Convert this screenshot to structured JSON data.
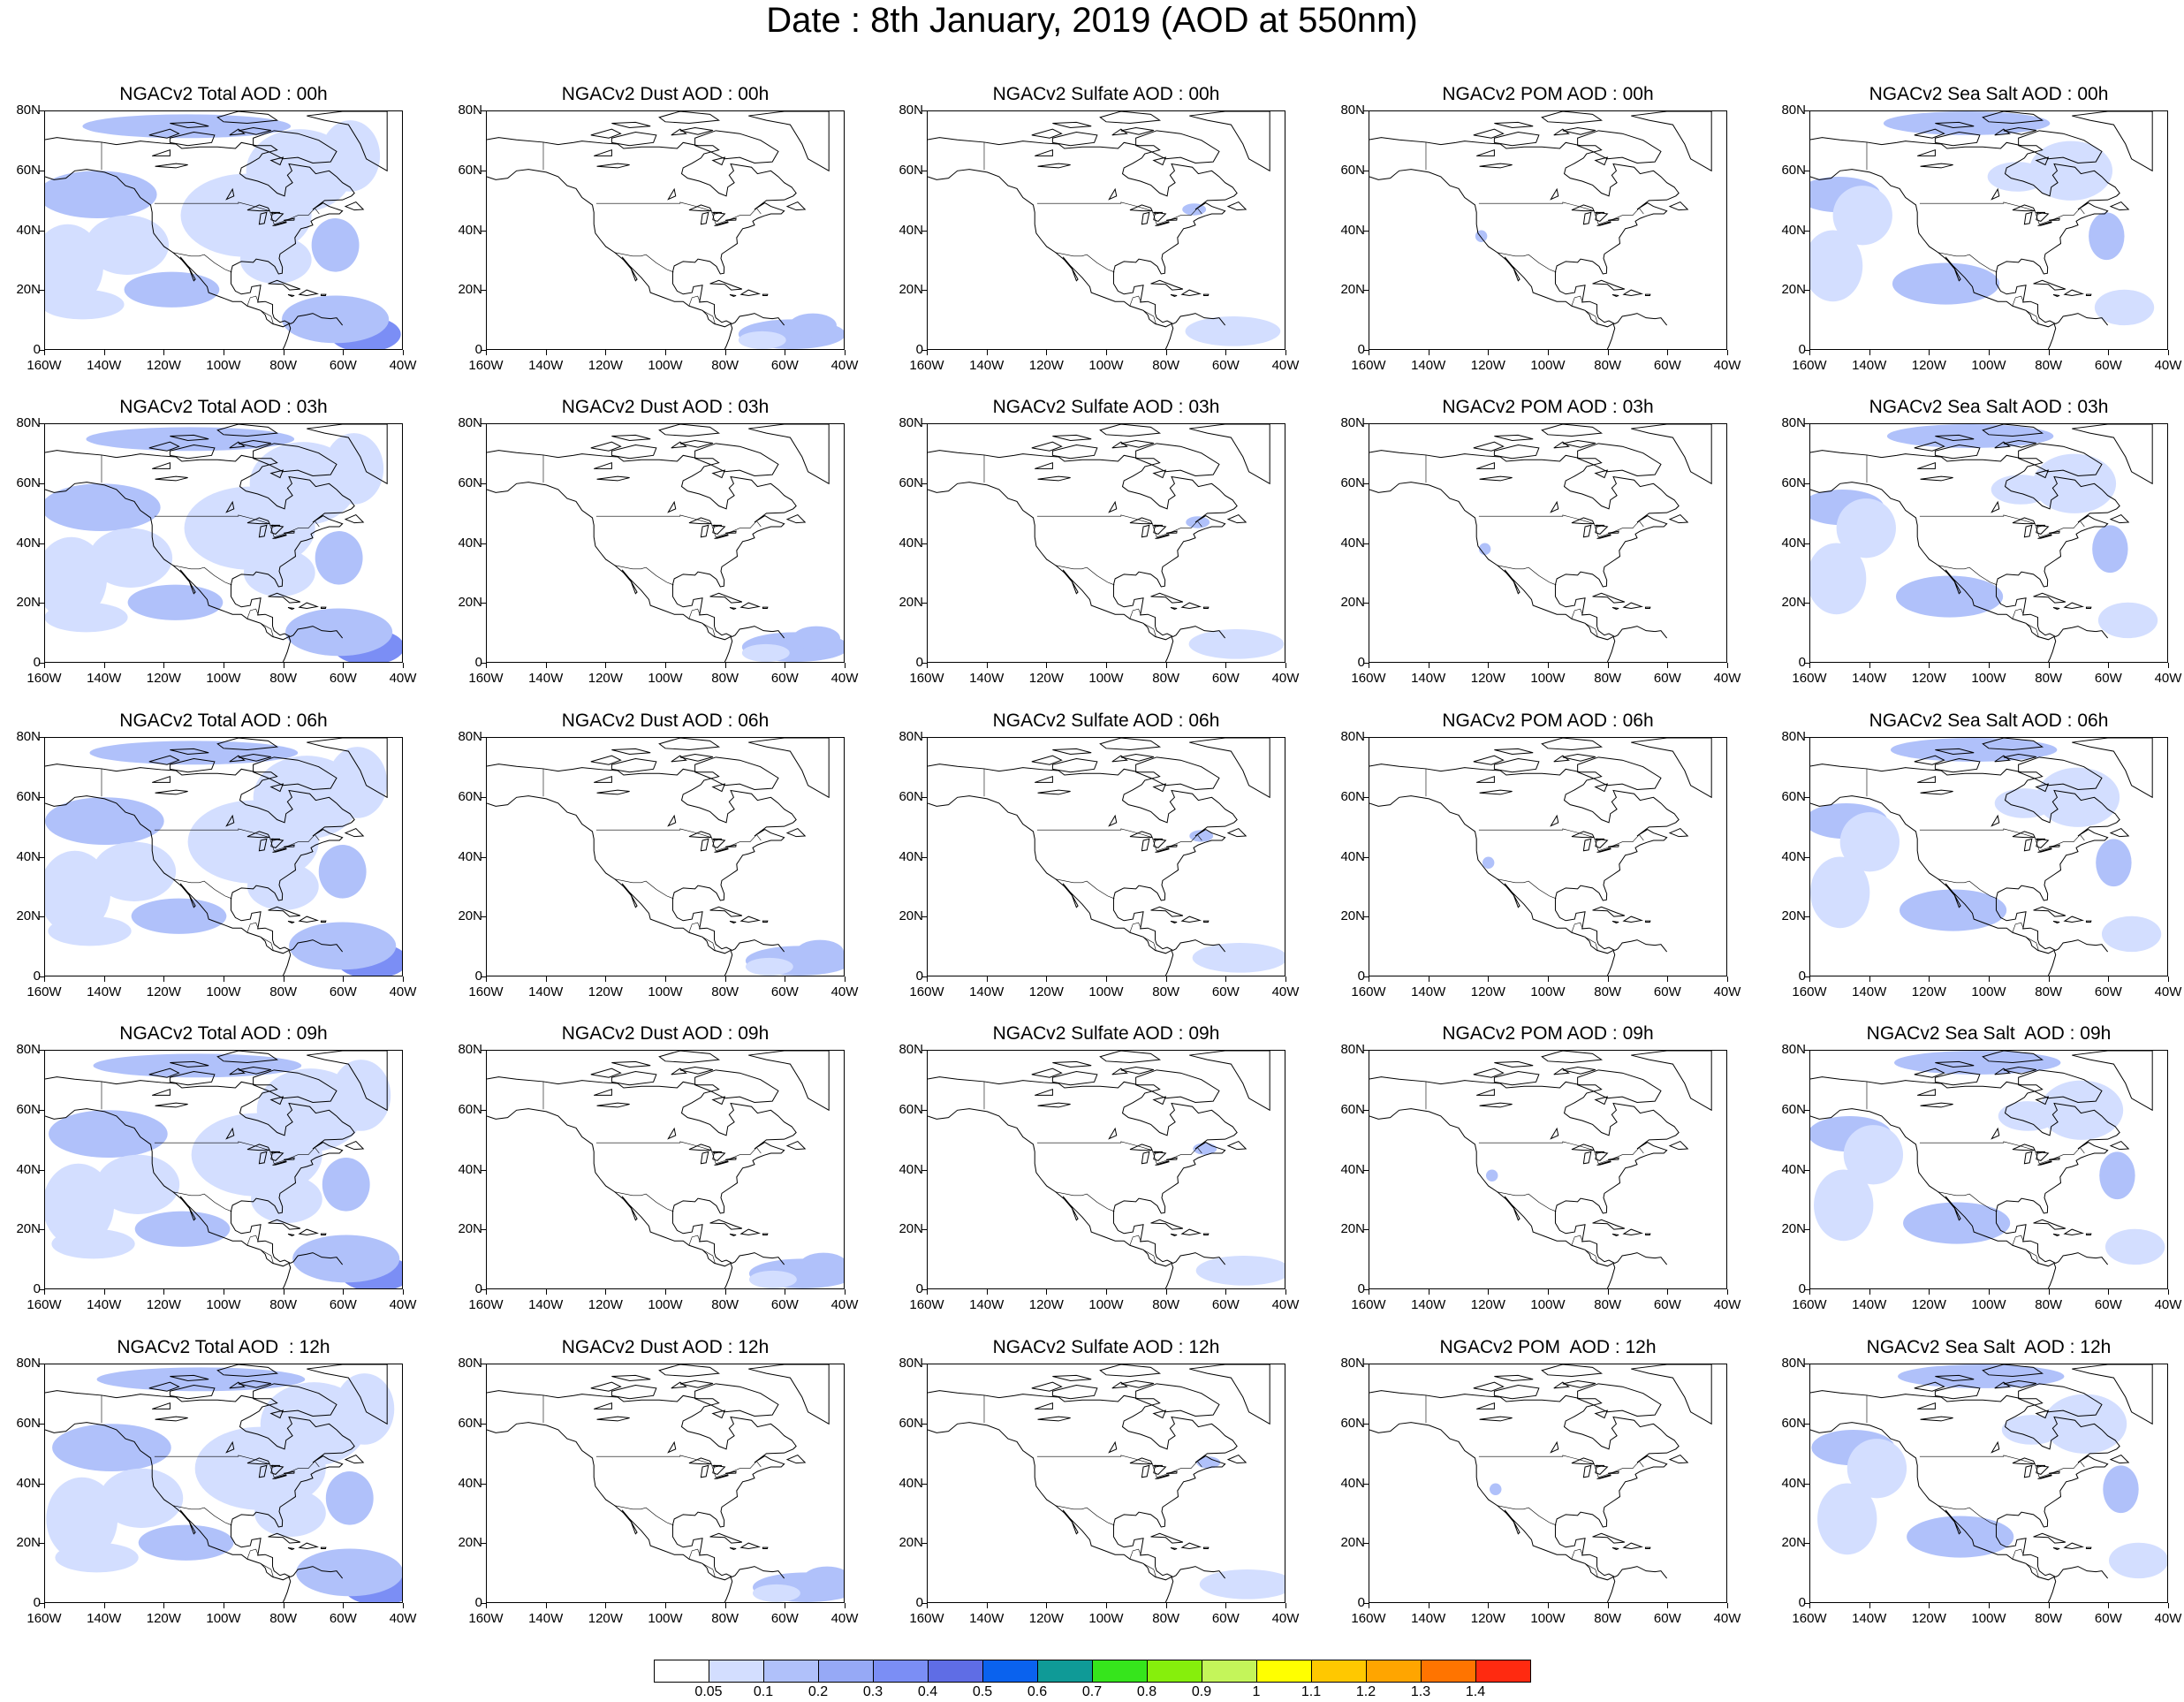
{
  "figure_title": "Date : 8th January, 2019 (AOD at 550nm)",
  "y_tick_labels": [
    "80N",
    "60N",
    "40N",
    "20N",
    "0"
  ],
  "x_tick_labels": [
    "160W",
    "140W",
    "120W",
    "100W",
    "80W",
    "60W",
    "40W"
  ],
  "map_extent": {
    "lon_min": -160,
    "lon_max": -40,
    "lat_min": 0,
    "lat_max": 80
  },
  "variables": [
    "Total",
    "Dust",
    "Sulfate",
    "POM",
    "Sea Salt"
  ],
  "forecast_hours": [
    "00h",
    "03h",
    "06h",
    "09h",
    "12h"
  ],
  "panels": [
    [
      "NGACv2 Total AOD : 00h",
      "NGACv2 Dust AOD : 00h",
      "NGACv2 Sulfate AOD : 00h",
      "NGACv2 POM AOD : 00h",
      "NGACv2 Sea Salt AOD : 00h"
    ],
    [
      "NGACv2 Total AOD : 03h",
      "NGACv2 Dust AOD : 03h",
      "NGACv2 Sulfate AOD : 03h",
      "NGACv2 POM AOD : 03h",
      "NGACv2 Sea Salt AOD : 03h"
    ],
    [
      "NGACv2 Total AOD : 06h",
      "NGACv2 Dust AOD : 06h",
      "NGACv2 Sulfate AOD : 06h",
      "NGACv2 POM AOD : 06h",
      "NGACv2 Sea Salt AOD : 06h"
    ],
    [
      "NGACv2 Total AOD : 09h",
      "NGACv2 Dust AOD : 09h",
      "NGACv2 Sulfate AOD : 09h",
      "NGACv2 POM AOD : 09h",
      "NGACv2 Sea Salt  AOD : 09h"
    ],
    [
      "NGACv2 Total AOD  : 12h",
      "NGACv2 Dust AOD : 12h",
      "NGACv2 Sulfate AOD : 12h",
      "NGACv2 POM  AOD : 12h",
      "NGACv2 Sea Salt  AOD : 12h"
    ]
  ],
  "colorbar": {
    "labels": [
      "0.05",
      "0.1",
      "0.2",
      "0.3",
      "0.4",
      "0.5",
      "0.6",
      "0.7",
      "0.8",
      "0.9",
      "1",
      "1.1",
      "1.2",
      "1.3",
      "1.4"
    ],
    "colors": [
      "#ffffff",
      "#d3deff",
      "#b0c1fa",
      "#96a9f6",
      "#7b8ef5",
      "#5f6de5",
      "#0a62ee",
      "#0f9a97",
      "#36e51c",
      "#86ef0c",
      "#c4f55a",
      "#ffff00",
      "#ffc800",
      "#ffa500",
      "#ff7400",
      "#ff2a10"
    ]
  },
  "map_colors": {
    "light": "#d3deff",
    "mid": "#b0c1fa",
    "dark": "#7b8ef5",
    "coast": "#000000"
  }
}
